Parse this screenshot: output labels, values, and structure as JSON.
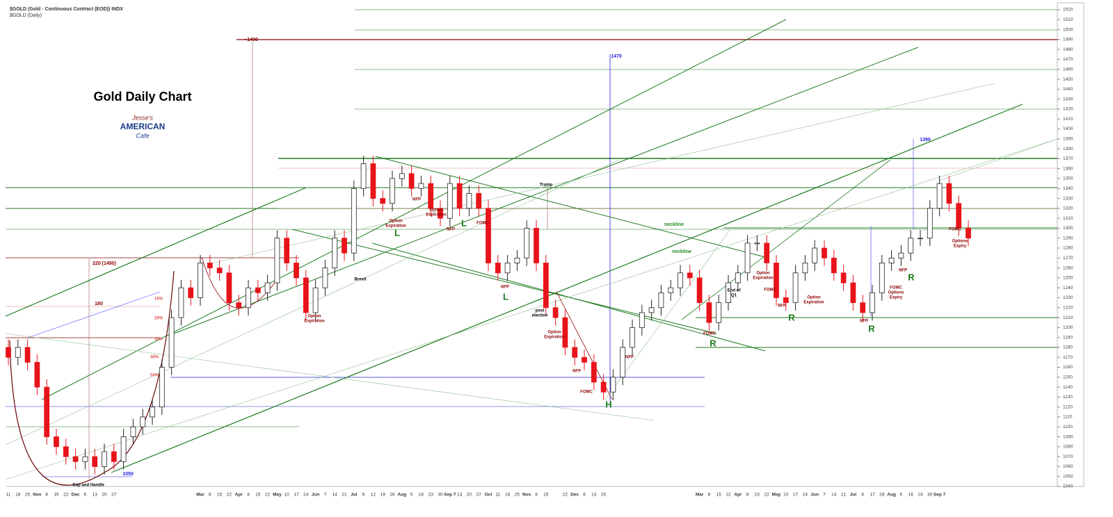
{
  "chart_data": {
    "type": "candlestick",
    "header": "$GOLD (Gold - Continuous Contract (EOD)) INDX",
    "subheader": "$GOLD (Daily)",
    "title": "Gold Daily Chart",
    "logo": [
      "Jesse's",
      "AMERICAN",
      "Cafe"
    ],
    "up_color": "#ffffff",
    "down_color": "#e8141b",
    "edge_color": "#222222",
    "ylim": [
      1040,
      1520
    ],
    "yticks": [
      1040,
      1050,
      1060,
      1070,
      1080,
      1090,
      1100,
      1110,
      1120,
      1130,
      1140,
      1150,
      1160,
      1170,
      1180,
      1190,
      1200,
      1210,
      1220,
      1230,
      1240,
      1250,
      1260,
      1270,
      1280,
      1290,
      1300,
      1310,
      1320,
      1330,
      1340,
      1350,
      1360,
      1370,
      1380,
      1390,
      1400,
      1410,
      1420,
      1430,
      1440,
      1450,
      1460,
      1470,
      1480,
      1490,
      1500,
      1510,
      1520
    ],
    "categories": [
      "11",
      "18",
      "25",
      "Nov",
      "8",
      "15",
      "22",
      "Dec",
      "6",
      "13",
      "20",
      "27",
      null,
      null,
      null,
      null,
      null,
      null,
      null,
      null,
      "Mar",
      "8",
      "15",
      "22",
      "Apr",
      "8",
      "15",
      "22",
      "May",
      "10",
      "17",
      "24",
      "Jun",
      "7",
      "14",
      "21",
      "Jul",
      "6",
      "12",
      "19",
      "26",
      "Aug",
      "5",
      "16",
      "23",
      "30",
      "Sep 7",
      "13",
      "20",
      "27",
      "Oct",
      "11",
      "18",
      "25",
      "Nov",
      "8",
      "15",
      null,
      "22",
      "Dec",
      "6",
      "13",
      "20",
      null,
      null,
      null,
      null,
      null,
      null,
      null,
      null,
      null,
      "Mar",
      "8",
      "15",
      "22",
      "Apr",
      "8",
      "15",
      "22",
      "May",
      "10",
      "17",
      "24",
      "Jun",
      "7",
      "14",
      "21",
      "Jul",
      "6",
      "17",
      "28",
      "Aug",
      "6",
      "16",
      "23",
      "30",
      "Sep 7",
      null,
      null,
      null
    ],
    "open": [
      1180,
      1170,
      1180,
      1165,
      1140,
      1090,
      1080,
      1070,
      1065,
      1070,
      1060,
      1075,
      1065,
      1090,
      1100,
      1110,
      1120,
      1160,
      1210,
      1240,
      1230,
      1265,
      1260,
      1255,
      1225,
      1220,
      1240,
      1235,
      1245,
      1290,
      1265,
      1250,
      1215,
      1240,
      1260,
      1290,
      1275,
      1340,
      1365,
      1330,
      1325,
      1350,
      1355,
      1340,
      1345,
      1320,
      1310,
      1345,
      1320,
      1335,
      1320,
      1265,
      1255,
      1265,
      1270,
      1300,
      1265,
      1220,
      1210,
      1180,
      1170,
      1165,
      1145,
      1135,
      1150,
      1180,
      1200,
      1215,
      1220,
      1235,
      1240,
      1255,
      1250,
      1225,
      1205,
      1225,
      1245,
      1255,
      1285,
      1285,
      1265,
      1230,
      1225,
      1255,
      1265,
      1280,
      1270,
      1255,
      1245,
      1225,
      1215,
      1235,
      1265,
      1270,
      1275,
      1290,
      1290,
      1320,
      1345,
      1325,
      1300
    ],
    "high": [
      1188,
      1188,
      1188,
      1173,
      1148,
      1098,
      1088,
      1078,
      1078,
      1078,
      1083,
      1083,
      1098,
      1108,
      1118,
      1128,
      1168,
      1218,
      1248,
      1248,
      1273,
      1273,
      1268,
      1263,
      1233,
      1248,
      1248,
      1253,
      1298,
      1298,
      1273,
      1258,
      1248,
      1268,
      1298,
      1298,
      1348,
      1373,
      1373,
      1338,
      1358,
      1363,
      1363,
      1353,
      1353,
      1328,
      1353,
      1353,
      1343,
      1343,
      1328,
      1273,
      1273,
      1278,
      1308,
      1308,
      1273,
      1228,
      1218,
      1188,
      1178,
      1173,
      1153,
      1158,
      1188,
      1208,
      1223,
      1228,
      1243,
      1248,
      1263,
      1263,
      1258,
      1233,
      1233,
      1253,
      1263,
      1293,
      1293,
      1293,
      1273,
      1238,
      1263,
      1273,
      1288,
      1288,
      1278,
      1263,
      1253,
      1233,
      1243,
      1273,
      1278,
      1283,
      1298,
      1298,
      1328,
      1353,
      1353,
      1333,
      1308
    ],
    "low": [
      1162,
      1162,
      1157,
      1132,
      1082,
      1072,
      1062,
      1057,
      1057,
      1052,
      1052,
      1057,
      1057,
      1082,
      1092,
      1102,
      1112,
      1152,
      1202,
      1222,
      1222,
      1252,
      1247,
      1217,
      1212,
      1212,
      1227,
      1227,
      1237,
      1257,
      1242,
      1207,
      1207,
      1232,
      1252,
      1267,
      1267,
      1332,
      1322,
      1317,
      1317,
      1342,
      1332,
      1332,
      1312,
      1302,
      1302,
      1312,
      1312,
      1312,
      1257,
      1247,
      1247,
      1257,
      1262,
      1257,
      1212,
      1202,
      1172,
      1162,
      1157,
      1137,
      1127,
      1127,
      1142,
      1172,
      1192,
      1207,
      1212,
      1227,
      1232,
      1242,
      1217,
      1197,
      1197,
      1217,
      1237,
      1247,
      1277,
      1257,
      1222,
      1217,
      1217,
      1247,
      1257,
      1262,
      1247,
      1237,
      1217,
      1207,
      1207,
      1227,
      1257,
      1262,
      1267,
      1282,
      1282,
      1312,
      1317,
      1292,
      1282
    ],
    "close": [
      1170,
      1180,
      1165,
      1140,
      1090,
      1080,
      1070,
      1065,
      1070,
      1060,
      1075,
      1065,
      1090,
      1100,
      1110,
      1120,
      1160,
      1210,
      1240,
      1230,
      1265,
      1260,
      1255,
      1225,
      1220,
      1240,
      1235,
      1245,
      1290,
      1265,
      1250,
      1215,
      1240,
      1260,
      1290,
      1275,
      1340,
      1365,
      1330,
      1325,
      1350,
      1355,
      1340,
      1345,
      1320,
      1310,
      1345,
      1320,
      1335,
      1320,
      1265,
      1255,
      1265,
      1270,
      1300,
      1265,
      1220,
      1210,
      1180,
      1170,
      1165,
      1145,
      1135,
      1150,
      1180,
      1200,
      1215,
      1220,
      1235,
      1240,
      1255,
      1250,
      1225,
      1205,
      1225,
      1245,
      1255,
      1285,
      1285,
      1265,
      1230,
      1225,
      1255,
      1265,
      1280,
      1270,
      1255,
      1245,
      1225,
      1215,
      1235,
      1265,
      1270,
      1275,
      1290,
      1290,
      1320,
      1345,
      1325,
      1300,
      1290
    ],
    "annotations": [
      {
        "text": [
          "~1490"
        ],
        "color": "#8b0000"
      },
      {
        "text": [
          "1470"
        ],
        "color": "#2222dd"
      },
      {
        "text": [
          "1390"
        ],
        "color": "#2222dd"
      },
      {
        "text": [
          "220   (1490)"
        ],
        "color": "#8b0000"
      },
      {
        "text": [
          "180"
        ],
        "color": "#8b0000"
      },
      {
        "text": [
          "10%"
        ],
        "color": "#e05050"
      },
      {
        "text": [
          "20%"
        ],
        "color": "#e05050"
      },
      {
        "text": [
          "30%"
        ],
        "color": "#e05050"
      },
      {
        "text": [
          "40%"
        ],
        "color": "#e05050"
      },
      {
        "text": [
          "50%"
        ],
        "color": "#e05050"
      },
      {
        "text": [
          "1050"
        ],
        "color": "#2222dd"
      },
      {
        "text": [
          "Cup and Handle"
        ],
        "color": "#000000"
      },
      {
        "text": [
          "Brexit"
        ],
        "color": "#000000"
      },
      {
        "text": [
          "Trump"
        ],
        "color": "#000000"
      },
      {
        "text": [
          "post",
          "election"
        ],
        "color": "#000000"
      },
      {
        "text": [
          "Option",
          "Expiration"
        ],
        "color": "#8b0000"
      },
      {
        "text": [
          "Option",
          "Expiration"
        ],
        "color": "#8b0000"
      },
      {
        "text": [
          "Option",
          "Expiration"
        ],
        "color": "#8b0000"
      },
      {
        "text": [
          "Option",
          "Expiration"
        ],
        "color": "#8b0000"
      },
      {
        "text": [
          "Option",
          "Expiration"
        ],
        "color": "#8b0000"
      },
      {
        "text": [
          "Option",
          "Expiration"
        ],
        "color": "#8b0000"
      },
      {
        "text": [
          "NFP"
        ],
        "color": "#8b0000"
      },
      {
        "text": [
          "NFP"
        ],
        "color": "#8b0000"
      },
      {
        "text": [
          "NFP"
        ],
        "color": "#8b0000"
      },
      {
        "text": [
          "NFP"
        ],
        "color": "#8b0000"
      },
      {
        "text": [
          "NFP"
        ],
        "color": "#8b0000"
      },
      {
        "text": [
          "NFP"
        ],
        "color": "#8b0000"
      },
      {
        "text": [
          "NFP"
        ],
        "color": "#8b0000"
      },
      {
        "text": [
          "NFP"
        ],
        "color": "#8b0000"
      },
      {
        "text": [
          "FOMC"
        ],
        "color": "#8b0000"
      },
      {
        "text": [
          "FOMC"
        ],
        "color": "#8b0000"
      },
      {
        "text": [
          "FOMC"
        ],
        "color": "#8b0000"
      },
      {
        "text": [
          "FOMC"
        ],
        "color": "#8b0000"
      },
      {
        "text": [
          "FOMC"
        ],
        "color": "#8b0000"
      },
      {
        "text": [
          "FOMC",
          "Options",
          "Expiry"
        ],
        "color": "#8b0000"
      },
      {
        "text": [
          "Options",
          "Expiry"
        ],
        "color": "#8b0000"
      },
      {
        "text": [
          "End of",
          "Q1"
        ],
        "color": "#000000"
      },
      {
        "text": [
          "neckline"
        ],
        "color": "#228b22"
      },
      {
        "text": [
          "neckline"
        ],
        "color": "#228b22"
      },
      {
        "text": [
          "L"
        ],
        "color": "#1a7a1a"
      },
      {
        "text": [
          "L"
        ],
        "color": "#1a7a1a"
      },
      {
        "text": [
          "L"
        ],
        "color": "#1a7a1a"
      },
      {
        "text": [
          "H"
        ],
        "color": "#1a7a1a"
      },
      {
        "text": [
          "R"
        ],
        "color": "#1a7a1a"
      },
      {
        "text": [
          "R"
        ],
        "color": "#1a7a1a"
      },
      {
        "text": [
          "R"
        ],
        "color": "#1a7a1a"
      },
      {
        "text": [
          "R"
        ],
        "color": "#1a7a1a"
      }
    ]
  }
}
